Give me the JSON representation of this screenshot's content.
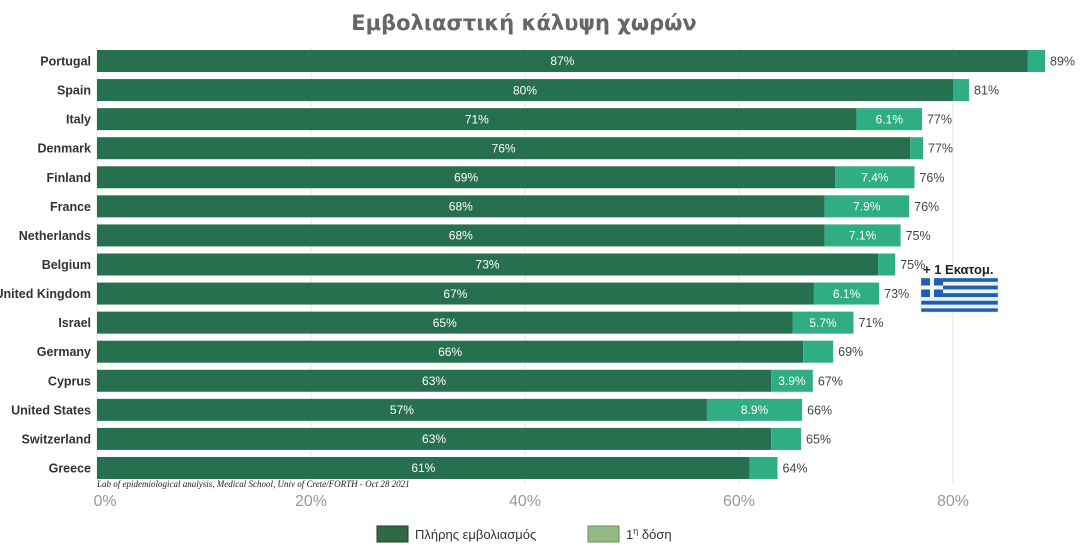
{
  "chart_data": {
    "type": "bar",
    "orientation": "horizontal",
    "stacked": true,
    "title": "Εμβολιαστική κάλυψη χωρών",
    "categories": [
      "Portugal",
      "Spain",
      "Italy",
      "Denmark",
      "Finland",
      "France",
      "Netherlands",
      "Belgium",
      "United Kingdom",
      "Israel",
      "Germany",
      "Cyprus",
      "United States",
      "Switzerland",
      "Greece"
    ],
    "series": [
      {
        "name": "Πλήρης εμβολιασμός",
        "color": "#27704f",
        "values": [
          87,
          80,
          71,
          76,
          69,
          68,
          68,
          73,
          67,
          65,
          66,
          63,
          57,
          63,
          61
        ],
        "labels": [
          "87%",
          "80%",
          "71%",
          "76%",
          "69%",
          "68%",
          "68%",
          "73%",
          "67%",
          "65%",
          "66%",
          "63%",
          "57%",
          "63%",
          "61%"
        ]
      },
      {
        "name": "1η δόση",
        "color": "#2fae84",
        "values": [
          1.6,
          1.5,
          6.1,
          1.2,
          7.4,
          7.9,
          7.1,
          1.6,
          6.1,
          5.7,
          2.8,
          3.9,
          8.9,
          2.8,
          2.6
        ],
        "labels": [
          "",
          "",
          "6.1%",
          "",
          "7.4%",
          "7.9%",
          "7.1%",
          "",
          "6.1%",
          "5.7%",
          "",
          "3.9%",
          "8.9%",
          "",
          ""
        ]
      }
    ],
    "totals": [
      "89%",
      "81%",
      "77%",
      "77%",
      "76%",
      "76%",
      "75%",
      "75%",
      "73%",
      "71%",
      "69%",
      "67%",
      "66%",
      "65%",
      "64%"
    ],
    "xlim": [
      0,
      90
    ],
    "xticks": [
      0,
      20,
      40,
      60,
      80
    ],
    "xtick_labels": [
      "0%",
      "20%",
      "40%",
      "60%",
      "80%"
    ],
    "grid": true,
    "legend_position": "bottom",
    "legend_items": [
      {
        "label": "Πλήρης εμβολιασμός",
        "color": "#2e6b45"
      },
      {
        "label": "1",
        "sup": "η",
        "suffix": " δόση",
        "color": "#95bb85"
      }
    ],
    "annotation": "+ 1 Εκατομ.",
    "annotation_mark": "greek-flag-icon",
    "source_note": "Lab of epidemiological analysis, Medical School, Univ of Crete/FORTH    - Oct 28 2021"
  }
}
